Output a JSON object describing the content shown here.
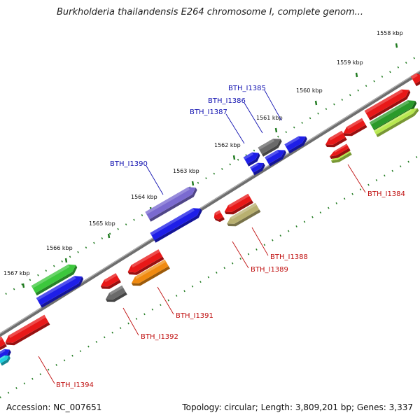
{
  "title": "Burkholderia thailandensis E264 chromosome I, complete genom...",
  "footer": {
    "accession": "Accession: NC_007651",
    "summary": "Topology: circular; Length: 3,809,201 bp; Genes: 3,337"
  },
  "colors": {
    "backbone": "#7f7f7f",
    "tick": "#1f7a1f",
    "label_plus": "#1010b0",
    "label_minus": "#c01010"
  },
  "scale_ticks": [
    "1558 kbp",
    "1559 kbp",
    "1560 kbp",
    "1561 kbp",
    "1562 kbp",
    "1563 kbp",
    "1564 kbp",
    "1565 kbp",
    "1566 kbp",
    "1567 kbp"
  ],
  "genes": [
    {
      "id": "BTH_I1385",
      "strand": "+",
      "color": "#6a6a6a",
      "labeled": true
    },
    {
      "id": "BTH_I1386",
      "strand": "+",
      "color": "#1e1ee8",
      "labeled": true
    },
    {
      "id": "BTH_I1387",
      "strand": "+",
      "color": "#1e1ee8",
      "labeled": true
    },
    {
      "id": "BTH_I1390",
      "strand": "+",
      "color": "#7a6ad0",
      "labeled": true
    },
    {
      "id": "BTH_I1384",
      "strand": "-",
      "color": "#e81818",
      "labeled": true
    },
    {
      "id": "BTH_I1388",
      "strand": "-",
      "color": "#b8b070",
      "labeled": true
    },
    {
      "id": "BTH_I1389",
      "strand": "-",
      "color": "#e81818",
      "labeled": true
    },
    {
      "id": "BTH_I1391",
      "strand": "-",
      "color": "#f08a10",
      "labeled": true
    },
    {
      "id": "BTH_I1392",
      "strand": "-",
      "color": "#6a6a6a",
      "labeled": true
    },
    {
      "id": "BTH_I1394",
      "strand": "-",
      "color": "#e81818",
      "labeled": true
    }
  ]
}
